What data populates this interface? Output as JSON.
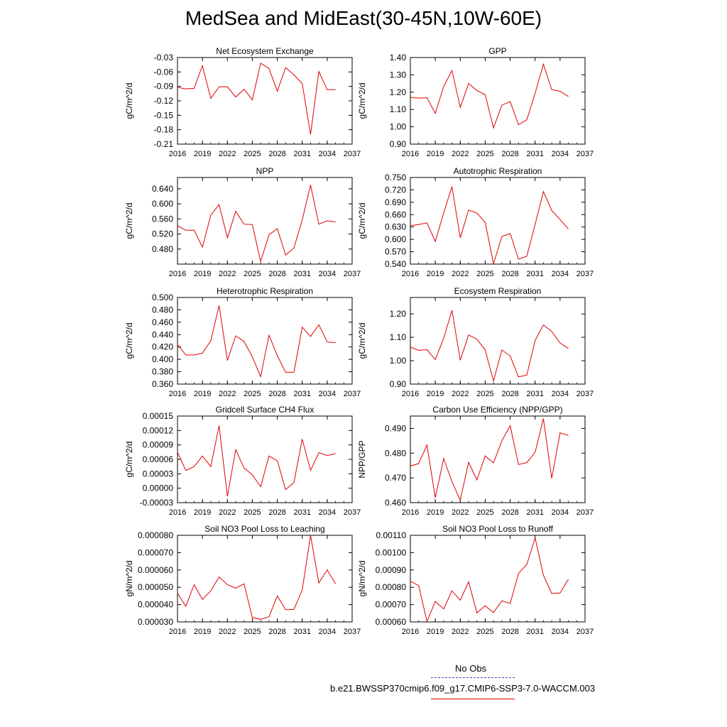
{
  "title": "MedSea and MidEast(30-45N,10W-60E)",
  "legend": {
    "obs_label": "No Obs",
    "run_label": "b.e21.BWSSP370cmip6.f09_g17.CMIP6-SSP3-7.0-WACCM.003",
    "obs_color": "#4040c0",
    "run_color": "#e00000"
  },
  "chart_data": [
    {
      "type": "line",
      "title": "Net Ecosystem Exchange",
      "ylabel": "gC/m^2/d",
      "xlim": [
        2016,
        2037
      ],
      "ylim": [
        -0.21,
        -0.03
      ],
      "x_ticks": [
        2016,
        2019,
        2022,
        2025,
        2028,
        2031,
        2034,
        2037
      ],
      "y_ticks": [
        "-0.21",
        "-0.18",
        "-0.15",
        "-0.12",
        "-0.09",
        "-0.06",
        "-0.03"
      ],
      "series": [
        {
          "x": [
            2016,
            2017,
            2018,
            2019,
            2020,
            2021,
            2022,
            2023,
            2024,
            2025,
            2026,
            2027,
            2028,
            2029,
            2030,
            2031,
            2032,
            2033,
            2034,
            2035
          ],
          "values": [
            -0.092,
            -0.095,
            -0.094,
            -0.047,
            -0.115,
            -0.091,
            -0.091,
            -0.112,
            -0.096,
            -0.118,
            -0.042,
            -0.053,
            -0.1,
            -0.051,
            -0.066,
            -0.084,
            -0.19,
            -0.059,
            -0.097,
            -0.097
          ],
          "color": "#e00000"
        }
      ]
    },
    {
      "type": "line",
      "title": "GPP",
      "ylabel": "gC/m^2/d",
      "xlim": [
        2016,
        2037
      ],
      "ylim": [
        0.9,
        1.4
      ],
      "x_ticks": [
        2016,
        2019,
        2022,
        2025,
        2028,
        2031,
        2034,
        2037
      ],
      "y_ticks": [
        "0.90",
        "1.00",
        "1.10",
        "1.20",
        "1.30",
        "1.40"
      ],
      "series": [
        {
          "x": [
            2016,
            2017,
            2018,
            2019,
            2020,
            2021,
            2022,
            2023,
            2024,
            2025,
            2026,
            2027,
            2028,
            2029,
            2030,
            2031,
            2032,
            2033,
            2034,
            2035
          ],
          "values": [
            1.17,
            1.165,
            1.168,
            1.078,
            1.232,
            1.325,
            1.112,
            1.25,
            1.21,
            1.185,
            0.993,
            1.125,
            1.145,
            1.012,
            1.04,
            1.193,
            1.362,
            1.215,
            1.205,
            1.175
          ],
          "color": "#e00000"
        }
      ]
    },
    {
      "type": "line",
      "title": "NPP",
      "ylabel": "gC/m^2/d",
      "xlim": [
        2016,
        2037
      ],
      "ylim": [
        0.44,
        0.67
      ],
      "x_ticks": [
        2016,
        2019,
        2022,
        2025,
        2028,
        2031,
        2034,
        2037
      ],
      "y_ticks": [
        "0.480",
        "0.520",
        "0.560",
        "0.600",
        "0.640"
      ],
      "series": [
        {
          "x": [
            2016,
            2017,
            2018,
            2019,
            2020,
            2021,
            2022,
            2023,
            2024,
            2025,
            2026,
            2027,
            2028,
            2029,
            2030,
            2031,
            2032,
            2033,
            2034,
            2035
          ],
          "values": [
            0.542,
            0.53,
            0.53,
            0.485,
            0.57,
            0.598,
            0.51,
            0.58,
            0.546,
            0.545,
            0.447,
            0.518,
            0.534,
            0.464,
            0.483,
            0.557,
            0.65,
            0.546,
            0.555,
            0.552
          ],
          "color": "#e00000"
        }
      ]
    },
    {
      "type": "line",
      "title": "Autotrophic Respiration",
      "ylabel": "gC/m^2/d",
      "xlim": [
        2016,
        2037
      ],
      "ylim": [
        0.54,
        0.75
      ],
      "x_ticks": [
        2016,
        2019,
        2022,
        2025,
        2028,
        2031,
        2034,
        2037
      ],
      "y_ticks": [
        "0.540",
        "0.570",
        "0.600",
        "0.630",
        "0.660",
        "0.690",
        "0.720",
        "0.750"
      ],
      "series": [
        {
          "x": [
            2016,
            2017,
            2018,
            2019,
            2020,
            2021,
            2022,
            2023,
            2024,
            2025,
            2026,
            2027,
            2028,
            2029,
            2030,
            2031,
            2032,
            2033,
            2034,
            2035
          ],
          "values": [
            0.633,
            0.636,
            0.64,
            0.595,
            0.664,
            0.728,
            0.604,
            0.671,
            0.664,
            0.641,
            0.541,
            0.607,
            0.614,
            0.552,
            0.559,
            0.636,
            0.716,
            0.67,
            0.648,
            0.625
          ],
          "color": "#e00000"
        }
      ]
    },
    {
      "type": "line",
      "title": "Heterotrophic Respiration",
      "ylabel": "gC/m^2/d",
      "xlim": [
        2016,
        2037
      ],
      "ylim": [
        0.36,
        0.5
      ],
      "x_ticks": [
        2016,
        2019,
        2022,
        2025,
        2028,
        2031,
        2034,
        2037
      ],
      "y_ticks": [
        "0.360",
        "0.380",
        "0.400",
        "0.420",
        "0.440",
        "0.460",
        "0.480",
        "0.500"
      ],
      "series": [
        {
          "x": [
            2016,
            2017,
            2018,
            2019,
            2020,
            2021,
            2022,
            2023,
            2024,
            2025,
            2026,
            2027,
            2028,
            2029,
            2030,
            2031,
            2032,
            2033,
            2034,
            2035
          ],
          "values": [
            0.424,
            0.407,
            0.407,
            0.41,
            0.43,
            0.487,
            0.398,
            0.438,
            0.429,
            0.404,
            0.372,
            0.439,
            0.406,
            0.379,
            0.379,
            0.452,
            0.437,
            0.456,
            0.428,
            0.427
          ],
          "color": "#e00000"
        }
      ]
    },
    {
      "type": "line",
      "title": "Ecosystem Respiration",
      "ylabel": "gC/m^2/d",
      "xlim": [
        2016,
        2037
      ],
      "ylim": [
        0.9,
        1.27
      ],
      "x_ticks": [
        2016,
        2019,
        2022,
        2025,
        2028,
        2031,
        2034,
        2037
      ],
      "y_ticks": [
        "0.90",
        "1.00",
        "1.10",
        "1.20"
      ],
      "series": [
        {
          "x": [
            2016,
            2017,
            2018,
            2019,
            2020,
            2021,
            2022,
            2023,
            2024,
            2025,
            2026,
            2027,
            2028,
            2029,
            2030,
            2031,
            2032,
            2033,
            2034,
            2035
          ],
          "values": [
            1.058,
            1.044,
            1.047,
            1.005,
            1.095,
            1.215,
            1.002,
            1.11,
            1.092,
            1.046,
            0.913,
            1.046,
            1.02,
            0.931,
            0.938,
            1.086,
            1.153,
            1.125,
            1.076,
            1.052
          ],
          "color": "#e00000"
        }
      ]
    },
    {
      "type": "line",
      "title": "Gridcell Surface CH4 Flux",
      "ylabel": "gC/m^2/d",
      "xlim": [
        2016,
        2037
      ],
      "ylim": [
        -3e-05,
        0.00015
      ],
      "x_ticks": [
        2016,
        2019,
        2022,
        2025,
        2028,
        2031,
        2034,
        2037
      ],
      "y_ticks": [
        "-0.00003",
        "0.00000",
        "0.00003",
        "0.00006",
        "0.00009",
        "0.00012",
        "0.00015"
      ],
      "series": [
        {
          "x": [
            2016,
            2017,
            2018,
            2019,
            2020,
            2021,
            2022,
            2023,
            2024,
            2025,
            2026,
            2027,
            2028,
            2029,
            2030,
            2031,
            2032,
            2033,
            2034,
            2035
          ],
          "values": [
            7.5e-05,
            3.7e-05,
            4.5e-05,
            6.7e-05,
            4.5e-05,
            0.00013,
            -1.7e-05,
            8e-05,
            4.2e-05,
            2.8e-05,
            3e-06,
            6.7e-05,
            5.7e-05,
            -3e-06,
            1.2e-05,
            0.000102,
            3.7e-05,
            7.4e-05,
            6.8e-05,
            7.2e-05
          ],
          "color": "#e00000"
        }
      ]
    },
    {
      "type": "line",
      "title": "Carbon Use Efficiency (NPP/GPP)",
      "ylabel": "NPP/GPP",
      "xlim": [
        2016,
        2037
      ],
      "ylim": [
        0.46,
        0.495
      ],
      "x_ticks": [
        2016,
        2019,
        2022,
        2025,
        2028,
        2031,
        2034,
        2037
      ],
      "y_ticks": [
        "0.460",
        "0.470",
        "0.480",
        "0.490"
      ],
      "series": [
        {
          "x": [
            2016,
            2017,
            2018,
            2019,
            2020,
            2021,
            2022,
            2023,
            2024,
            2025,
            2026,
            2027,
            2028,
            2029,
            2030,
            2031,
            2032,
            2033,
            2034,
            2035
          ],
          "values": [
            0.4748,
            0.4758,
            0.4833,
            0.462,
            0.4778,
            0.4685,
            0.461,
            0.4763,
            0.4692,
            0.4789,
            0.4761,
            0.485,
            0.4911,
            0.4754,
            0.4762,
            0.4803,
            0.494,
            0.4698,
            0.4882,
            0.4871
          ],
          "color": "#e00000"
        }
      ]
    },
    {
      "type": "line",
      "title": "Soil NO3 Pool Loss to Leaching",
      "ylabel": "gN/m^2/d",
      "xlim": [
        2016,
        2037
      ],
      "ylim": [
        3e-05,
        8e-05
      ],
      "x_ticks": [
        2016,
        2019,
        2022,
        2025,
        2028,
        2031,
        2034,
        2037
      ],
      "y_ticks": [
        "0.000030",
        "0.000040",
        "0.000050",
        "0.000060",
        "0.000070",
        "0.000080"
      ],
      "series": [
        {
          "x": [
            2016,
            2017,
            2018,
            2019,
            2020,
            2021,
            2022,
            2023,
            2024,
            2025,
            2026,
            2027,
            2028,
            2029,
            2030,
            2031,
            2032,
            2033,
            2034,
            2035
          ],
          "values": [
            4.65e-05,
            3.9e-05,
            5.15e-05,
            4.3e-05,
            4.8e-05,
            5.6e-05,
            5.15e-05,
            4.95e-05,
            5.2e-05,
            3.25e-05,
            3.15e-05,
            3.3e-05,
            4.5e-05,
            3.7e-05,
            3.72e-05,
            4.85e-05,
            8e-05,
            5.25e-05,
            6e-05,
            5.2e-05
          ],
          "color": "#e00000"
        }
      ]
    },
    {
      "type": "line",
      "title": "Soil NO3 Pool Loss to Runoff",
      "ylabel": "gN/m^2/d",
      "xlim": [
        2016,
        2037
      ],
      "ylim": [
        0.0006,
        0.0011
      ],
      "x_ticks": [
        2016,
        2019,
        2022,
        2025,
        2028,
        2031,
        2034,
        2037
      ],
      "y_ticks": [
        "0.00060",
        "0.00070",
        "0.00080",
        "0.00090",
        "0.00100",
        "0.00110"
      ],
      "series": [
        {
          "x": [
            2016,
            2017,
            2018,
            2019,
            2020,
            2021,
            2022,
            2023,
            2024,
            2025,
            2026,
            2027,
            2028,
            2029,
            2030,
            2031,
            2032,
            2033,
            2034,
            2035
          ],
          "values": [
            0.000835,
            0.00081,
            0.000603,
            0.000718,
            0.000675,
            0.00078,
            0.000725,
            0.000832,
            0.000652,
            0.000693,
            0.000654,
            0.000722,
            0.000706,
            0.00088,
            0.000932,
            0.001085,
            0.00087,
            0.000765,
            0.000767,
            0.000847
          ],
          "color": "#e00000"
        }
      ]
    }
  ]
}
